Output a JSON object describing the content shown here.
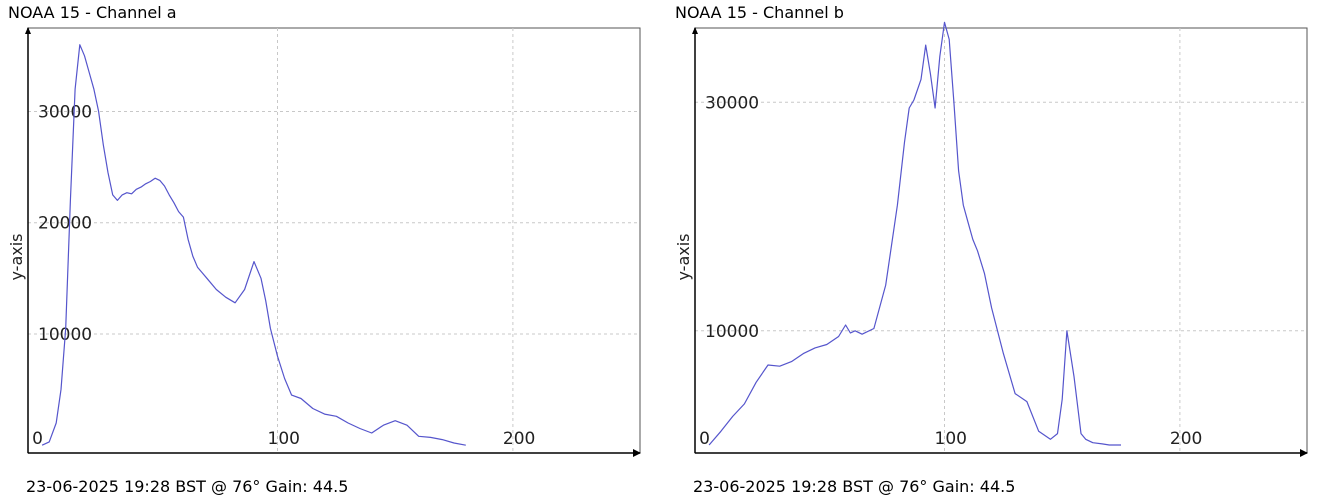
{
  "panels": [
    {
      "title": "NOAA 15 - Channel a",
      "footer": "23-06-2025 19:28 BST @ 76° Gain: 44.5"
    },
    {
      "title": "NOAA 15 - Channel b",
      "footer": "23-06-2025 19:28 BST @ 76° Gain: 44.5"
    }
  ],
  "chart_data": [
    {
      "type": "line",
      "title": "NOAA 15 - Channel a",
      "xlabel": "",
      "ylabel": "y-axis",
      "xlim": [
        -6,
        254
      ],
      "ylim": [
        -700,
        37500
      ],
      "xticks": [
        0,
        100,
        200
      ],
      "yticks": [
        10000,
        20000,
        30000
      ],
      "grid": true,
      "color": "#5555cc",
      "x": [
        0,
        3,
        6,
        8,
        10,
        12,
        14,
        16,
        18,
        20,
        22,
        24,
        26,
        28,
        30,
        32,
        34,
        36,
        38,
        40,
        42,
        44,
        46,
        48,
        50,
        52,
        54,
        56,
        58,
        60,
        62,
        64,
        66,
        68,
        70,
        74,
        78,
        82,
        86,
        90,
        93,
        95,
        97,
        100,
        103,
        106,
        110,
        115,
        120,
        125,
        130,
        135,
        140,
        145,
        150,
        155,
        160,
        165,
        170,
        175,
        180
      ],
      "y": [
        0,
        300,
        2000,
        5000,
        10500,
        22000,
        32000,
        36000,
        35000,
        33500,
        32000,
        30000,
        27000,
        24500,
        22500,
        22000,
        22500,
        22700,
        22600,
        23000,
        23200,
        23500,
        23700,
        24000,
        23800,
        23300,
        22500,
        21800,
        21000,
        20500,
        18500,
        17000,
        16000,
        15500,
        15000,
        14000,
        13300,
        12800,
        14000,
        16500,
        15000,
        13000,
        10500,
        8000,
        6000,
        4500,
        4200,
        3300,
        2800,
        2600,
        2000,
        1500,
        1100,
        1800,
        2200,
        1800,
        800,
        700,
        500,
        200,
        0
      ]
    },
    {
      "type": "line",
      "title": "NOAA 15 - Channel b",
      "xlabel": "",
      "ylabel": "y-axis",
      "xlim": [
        -6,
        254
      ],
      "ylim": [
        -700,
        36500
      ],
      "xticks": [
        0,
        100,
        200
      ],
      "yticks": [
        10000,
        30000
      ],
      "grid": true,
      "color": "#5555cc",
      "x": [
        0,
        5,
        10,
        15,
        20,
        25,
        30,
        35,
        40,
        45,
        50,
        55,
        58,
        60,
        62,
        65,
        70,
        75,
        80,
        83,
        85,
        87,
        90,
        92,
        94,
        96,
        98,
        100,
        102,
        104,
        106,
        108,
        110,
        112,
        114,
        117,
        120,
        125,
        130,
        135,
        140,
        145,
        148,
        150,
        152,
        155,
        158,
        160,
        163,
        167,
        170,
        175
      ],
      "y": [
        0,
        1200,
        2500,
        3600,
        5500,
        7000,
        6900,
        7300,
        8000,
        8500,
        8800,
        9500,
        10500,
        9800,
        10000,
        9700,
        10200,
        14000,
        21000,
        26500,
        29500,
        30200,
        32000,
        35000,
        32500,
        29500,
        34000,
        37000,
        35500,
        30000,
        24000,
        21000,
        19500,
        18000,
        17000,
        15000,
        12000,
        8000,
        4500,
        3800,
        1200,
        500,
        1000,
        4000,
        10000,
        6000,
        1000,
        500,
        200,
        100,
        0,
        0
      ]
    }
  ]
}
